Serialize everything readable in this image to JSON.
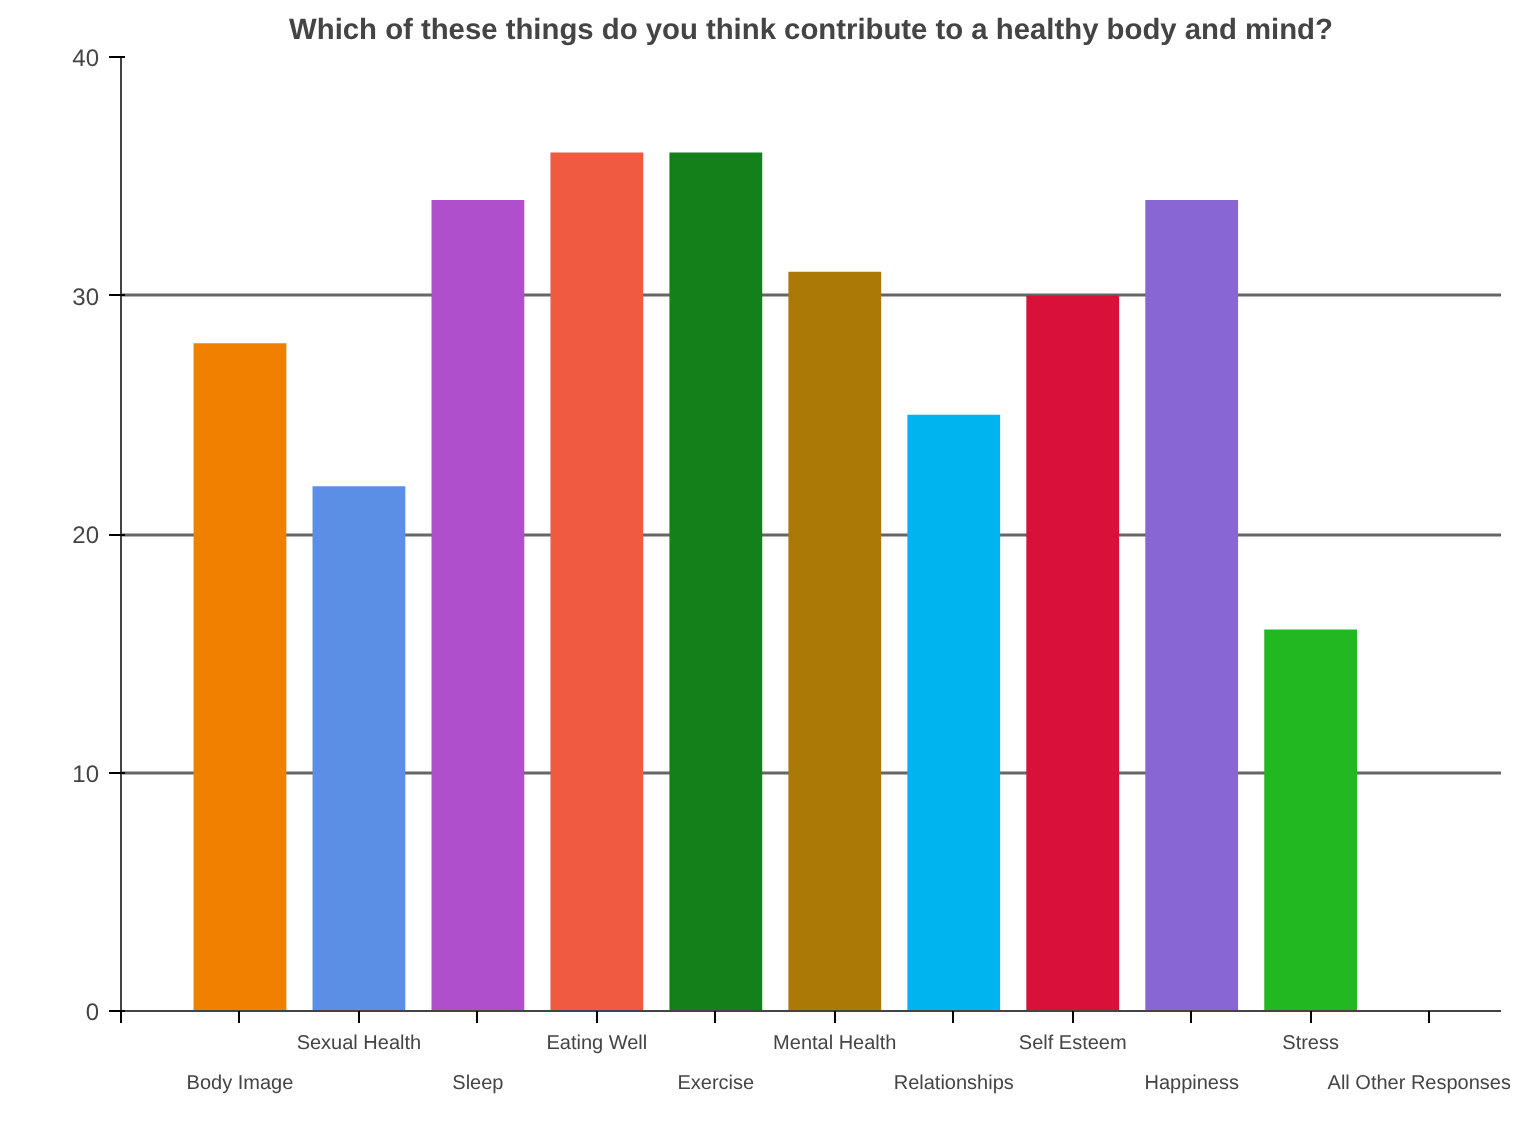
{
  "chart_data": {
    "type": "bar",
    "title": "Which of these things do you think contribute to a healthy body and mind?",
    "categories": [
      "Body Image",
      "Sexual Health",
      "Sleep",
      "Eating Well",
      "Exercise",
      "Mental Health",
      "Relationships",
      "Self Esteem",
      "Happiness",
      "Stress",
      "All Other Responses"
    ],
    "values": [
      28,
      22,
      34,
      36,
      36,
      31,
      25,
      30,
      34,
      16,
      0
    ],
    "colors": [
      "#f28000",
      "#5b8fe6",
      "#b04fcc",
      "#f05a40",
      "#13801a",
      "#ab7a06",
      "#00b4f0",
      "#d8103a",
      "#8866d4",
      "#22b822",
      "#888888"
    ],
    "ylim": [
      0,
      40
    ],
    "yticks": [
      0,
      10,
      20,
      30,
      40
    ],
    "grid": "y"
  }
}
